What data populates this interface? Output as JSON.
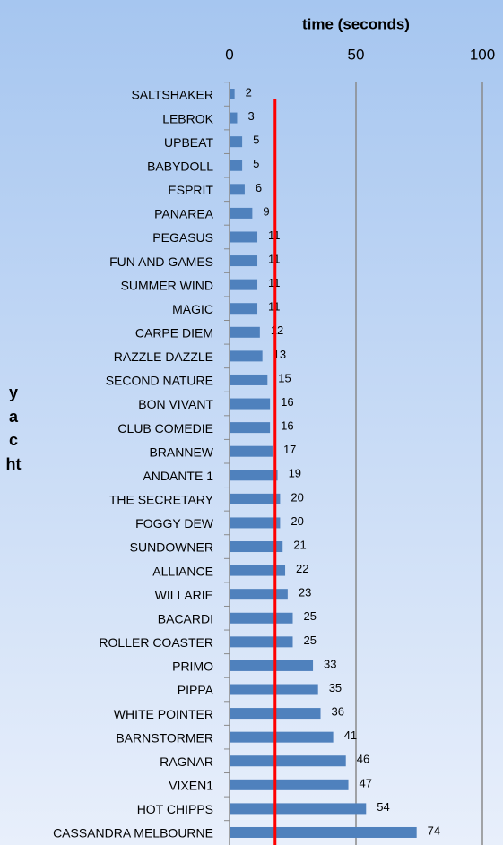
{
  "chart_data": {
    "type": "bar",
    "orientation": "horizontal",
    "xlabel": "time (seconds)",
    "ylabel": "yacht",
    "categories": [
      "SALTSHAKER",
      "LEBROK",
      "UPBEAT",
      "BABYDOLL",
      "ESPRIT",
      "PANAREA",
      "PEGASUS",
      "FUN AND GAMES",
      "SUMMER WIND",
      "MAGIC",
      "CARPE DIEM",
      "RAZZLE DAZZLE",
      "SECOND NATURE",
      "BON VIVANT",
      "CLUB COMEDIE",
      "BRANNEW",
      "ANDANTE 1",
      "THE SECRETARY",
      "FOGGY DEW",
      "SUNDOWNER",
      "ALLIANCE",
      "WILLARIE",
      "BACARDI",
      "ROLLER COASTER",
      "PRIMO",
      "PIPPA",
      "WHITE POINTER",
      "BARNSTORMER",
      "RAGNAR",
      "VIXEN1",
      "HOT CHIPPS",
      "CASSANDRA MELBOURNE"
    ],
    "values": [
      2,
      3,
      5,
      5,
      6,
      9,
      11,
      11,
      11,
      11,
      12,
      13,
      15,
      16,
      16,
      17,
      19,
      20,
      20,
      21,
      22,
      23,
      25,
      25,
      33,
      35,
      36,
      41,
      46,
      47,
      54,
      74
    ],
    "color": "#4f81bd",
    "xlim": [
      0,
      100
    ],
    "xticks": [
      0,
      50,
      100
    ],
    "grid": true,
    "reference_line": {
      "value": 18,
      "color": "#ff0000"
    }
  }
}
